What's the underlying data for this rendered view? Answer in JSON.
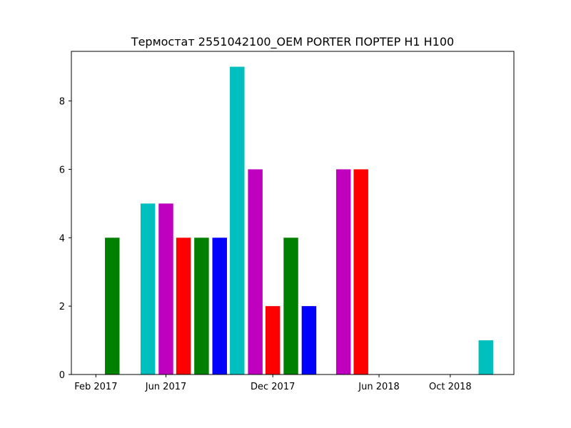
{
  "chart_data": {
    "type": "bar",
    "title": "Термостат 2551042100_OEM  PORTER ПОРТЕР H1 H100",
    "xlabel": "",
    "ylabel": "",
    "x_axis_type": "date",
    "xlim": [
      "2016-12-21",
      "2019-01-18"
    ],
    "ylim": [
      0,
      9.45
    ],
    "bar_width_days": 25,
    "x_ticks": [
      {
        "date": "2017-02-01",
        "label": "Feb 2017"
      },
      {
        "date": "2017-06-01",
        "label": "Jun 2017"
      },
      {
        "date": "2017-12-01",
        "label": "Dec 2017"
      },
      {
        "date": "2018-06-01",
        "label": "Jun 2018"
      },
      {
        "date": "2018-10-01",
        "label": "Oct 2018"
      }
    ],
    "y_ticks": [
      0,
      2,
      4,
      6,
      8
    ],
    "grid": false,
    "legend": "none",
    "bars": [
      {
        "date": "2017-03-01",
        "value": 4,
        "color": "#008000"
      },
      {
        "date": "2017-05-01",
        "value": 5,
        "color": "#00bfbf"
      },
      {
        "date": "2017-06-01",
        "value": 5,
        "color": "#bf00bf"
      },
      {
        "date": "2017-07-01",
        "value": 4,
        "color": "#ff0000"
      },
      {
        "date": "2017-08-01",
        "value": 4,
        "color": "#008000"
      },
      {
        "date": "2017-09-01",
        "value": 4,
        "color": "#0000ff"
      },
      {
        "date": "2017-10-01",
        "value": 9,
        "color": "#00bfbf"
      },
      {
        "date": "2017-11-01",
        "value": 6,
        "color": "#bf00bf"
      },
      {
        "date": "2017-12-01",
        "value": 2,
        "color": "#ff0000"
      },
      {
        "date": "2018-01-01",
        "value": 4,
        "color": "#008000"
      },
      {
        "date": "2018-02-01",
        "value": 2,
        "color": "#0000ff"
      },
      {
        "date": "2018-04-01",
        "value": 6,
        "color": "#bf00bf"
      },
      {
        "date": "2018-05-01",
        "value": 6,
        "color": "#ff0000"
      },
      {
        "date": "2018-12-01",
        "value": 1,
        "color": "#00bfbf"
      }
    ]
  }
}
